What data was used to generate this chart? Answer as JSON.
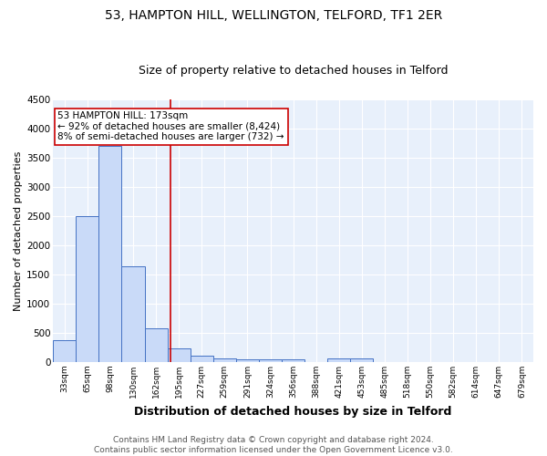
{
  "title": "53, HAMPTON HILL, WELLINGTON, TELFORD, TF1 2ER",
  "subtitle": "Size of property relative to detached houses in Telford",
  "xlabel": "Distribution of detached houses by size in Telford",
  "ylabel": "Number of detached properties",
  "categories": [
    "33sqm",
    "65sqm",
    "98sqm",
    "130sqm",
    "162sqm",
    "195sqm",
    "227sqm",
    "259sqm",
    "291sqm",
    "324sqm",
    "356sqm",
    "388sqm",
    "421sqm",
    "453sqm",
    "485sqm",
    "518sqm",
    "550sqm",
    "582sqm",
    "614sqm",
    "647sqm",
    "679sqm"
  ],
  "values": [
    380,
    2500,
    3700,
    1640,
    580,
    240,
    110,
    60,
    40,
    40,
    40,
    0,
    60,
    60,
    0,
    0,
    0,
    0,
    0,
    0,
    0
  ],
  "bar_color": "#c9daf8",
  "bar_edge_color": "#4472c4",
  "vline_position": 4.65,
  "vline_color": "#cc0000",
  "annotation_text": "53 HAMPTON HILL: 173sqm\n← 92% of detached houses are smaller (8,424)\n8% of semi-detached houses are larger (732) →",
  "annotation_box_color": "#ffffff",
  "annotation_box_edge": "#cc0000",
  "ylim": [
    0,
    4500
  ],
  "yticks": [
    0,
    500,
    1000,
    1500,
    2000,
    2500,
    3000,
    3500,
    4000,
    4500
  ],
  "bg_color": "#e8f0fb",
  "grid_color": "#ffffff",
  "footer_text": "Contains HM Land Registry data © Crown copyright and database right 2024.\nContains public sector information licensed under the Open Government Licence v3.0.",
  "title_fontsize": 10,
  "subtitle_fontsize": 9,
  "xlabel_fontsize": 9,
  "ylabel_fontsize": 8,
  "annotation_fontsize": 7.5,
  "footer_fontsize": 6.5
}
